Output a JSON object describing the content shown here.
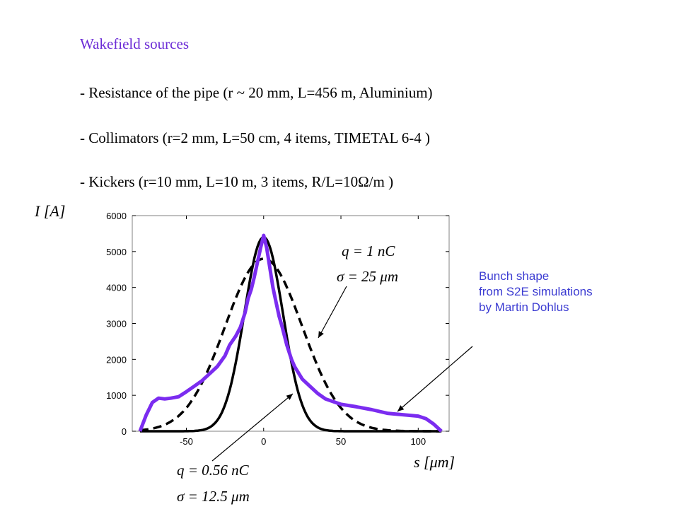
{
  "slide": {
    "title": "Wakefield sources",
    "bullets": [
      "- Resistance of the pipe (r ~ 20 mm, L=456 m, Aluminium)",
      "- Collimators (r=2 mm, L=50 cm, 4 items, TIMETAL 6-4 )",
      "- Kickers (r=10 mm, L=10 m, 3 items, R/L=10Ω/m )"
    ],
    "note_lines": [
      "Bunch shape",
      "from S2E simulations",
      "by Martin Dohlus"
    ]
  },
  "colors": {
    "title": "#6b2bd6",
    "note": "#3c3cd2",
    "s2e_curve": "#7b2cf0",
    "gauss": "#000000"
  },
  "chart_data": {
    "type": "line",
    "ylabel": "I [A]",
    "xlabel": "s [μm]",
    "xlim": [
      -85,
      120
    ],
    "ylim": [
      0,
      6000
    ],
    "x_ticks": [
      -50,
      0,
      50,
      100
    ],
    "y_ticks": [
      0,
      1000,
      2000,
      3000,
      4000,
      5000,
      6000
    ],
    "annotations": {
      "q_wide": "q = 1 nC",
      "sigma_wide": "σ = 25 μm",
      "q_narrow": "q = 0.56 nC",
      "sigma_narrow": "σ = 12.5 μm"
    },
    "series": [
      {
        "style": "thick-purple",
        "x": [
          -80,
          -76,
          -72,
          -68,
          -64,
          -60,
          -55,
          -50,
          -45,
          -40,
          -35,
          -30,
          -25,
          -22,
          -18,
          -15,
          -12,
          -10,
          -8,
          -6,
          -4,
          -2,
          0,
          2,
          4,
          6,
          8,
          10,
          12,
          15,
          18,
          20,
          25,
          30,
          35,
          40,
          50,
          60,
          70,
          80,
          90,
          100,
          105,
          110,
          115
        ],
        "y": [
          0,
          450,
          800,
          920,
          900,
          920,
          960,
          1100,
          1250,
          1400,
          1600,
          1800,
          2100,
          2400,
          2650,
          2900,
          3300,
          3700,
          3950,
          4300,
          4700,
          5100,
          5450,
          5100,
          4550,
          4000,
          3600,
          3200,
          2900,
          2400,
          2000,
          1800,
          1450,
          1250,
          1050,
          900,
          750,
          680,
          600,
          500,
          460,
          420,
          350,
          200,
          0
        ]
      },
      {
        "style": "dashed-gaussian",
        "peak": 4800,
        "mean": 0,
        "sigma": 25
      },
      {
        "style": "solid-gaussian",
        "peak": 5400,
        "mean": 0,
        "sigma": 12.5
      }
    ]
  }
}
